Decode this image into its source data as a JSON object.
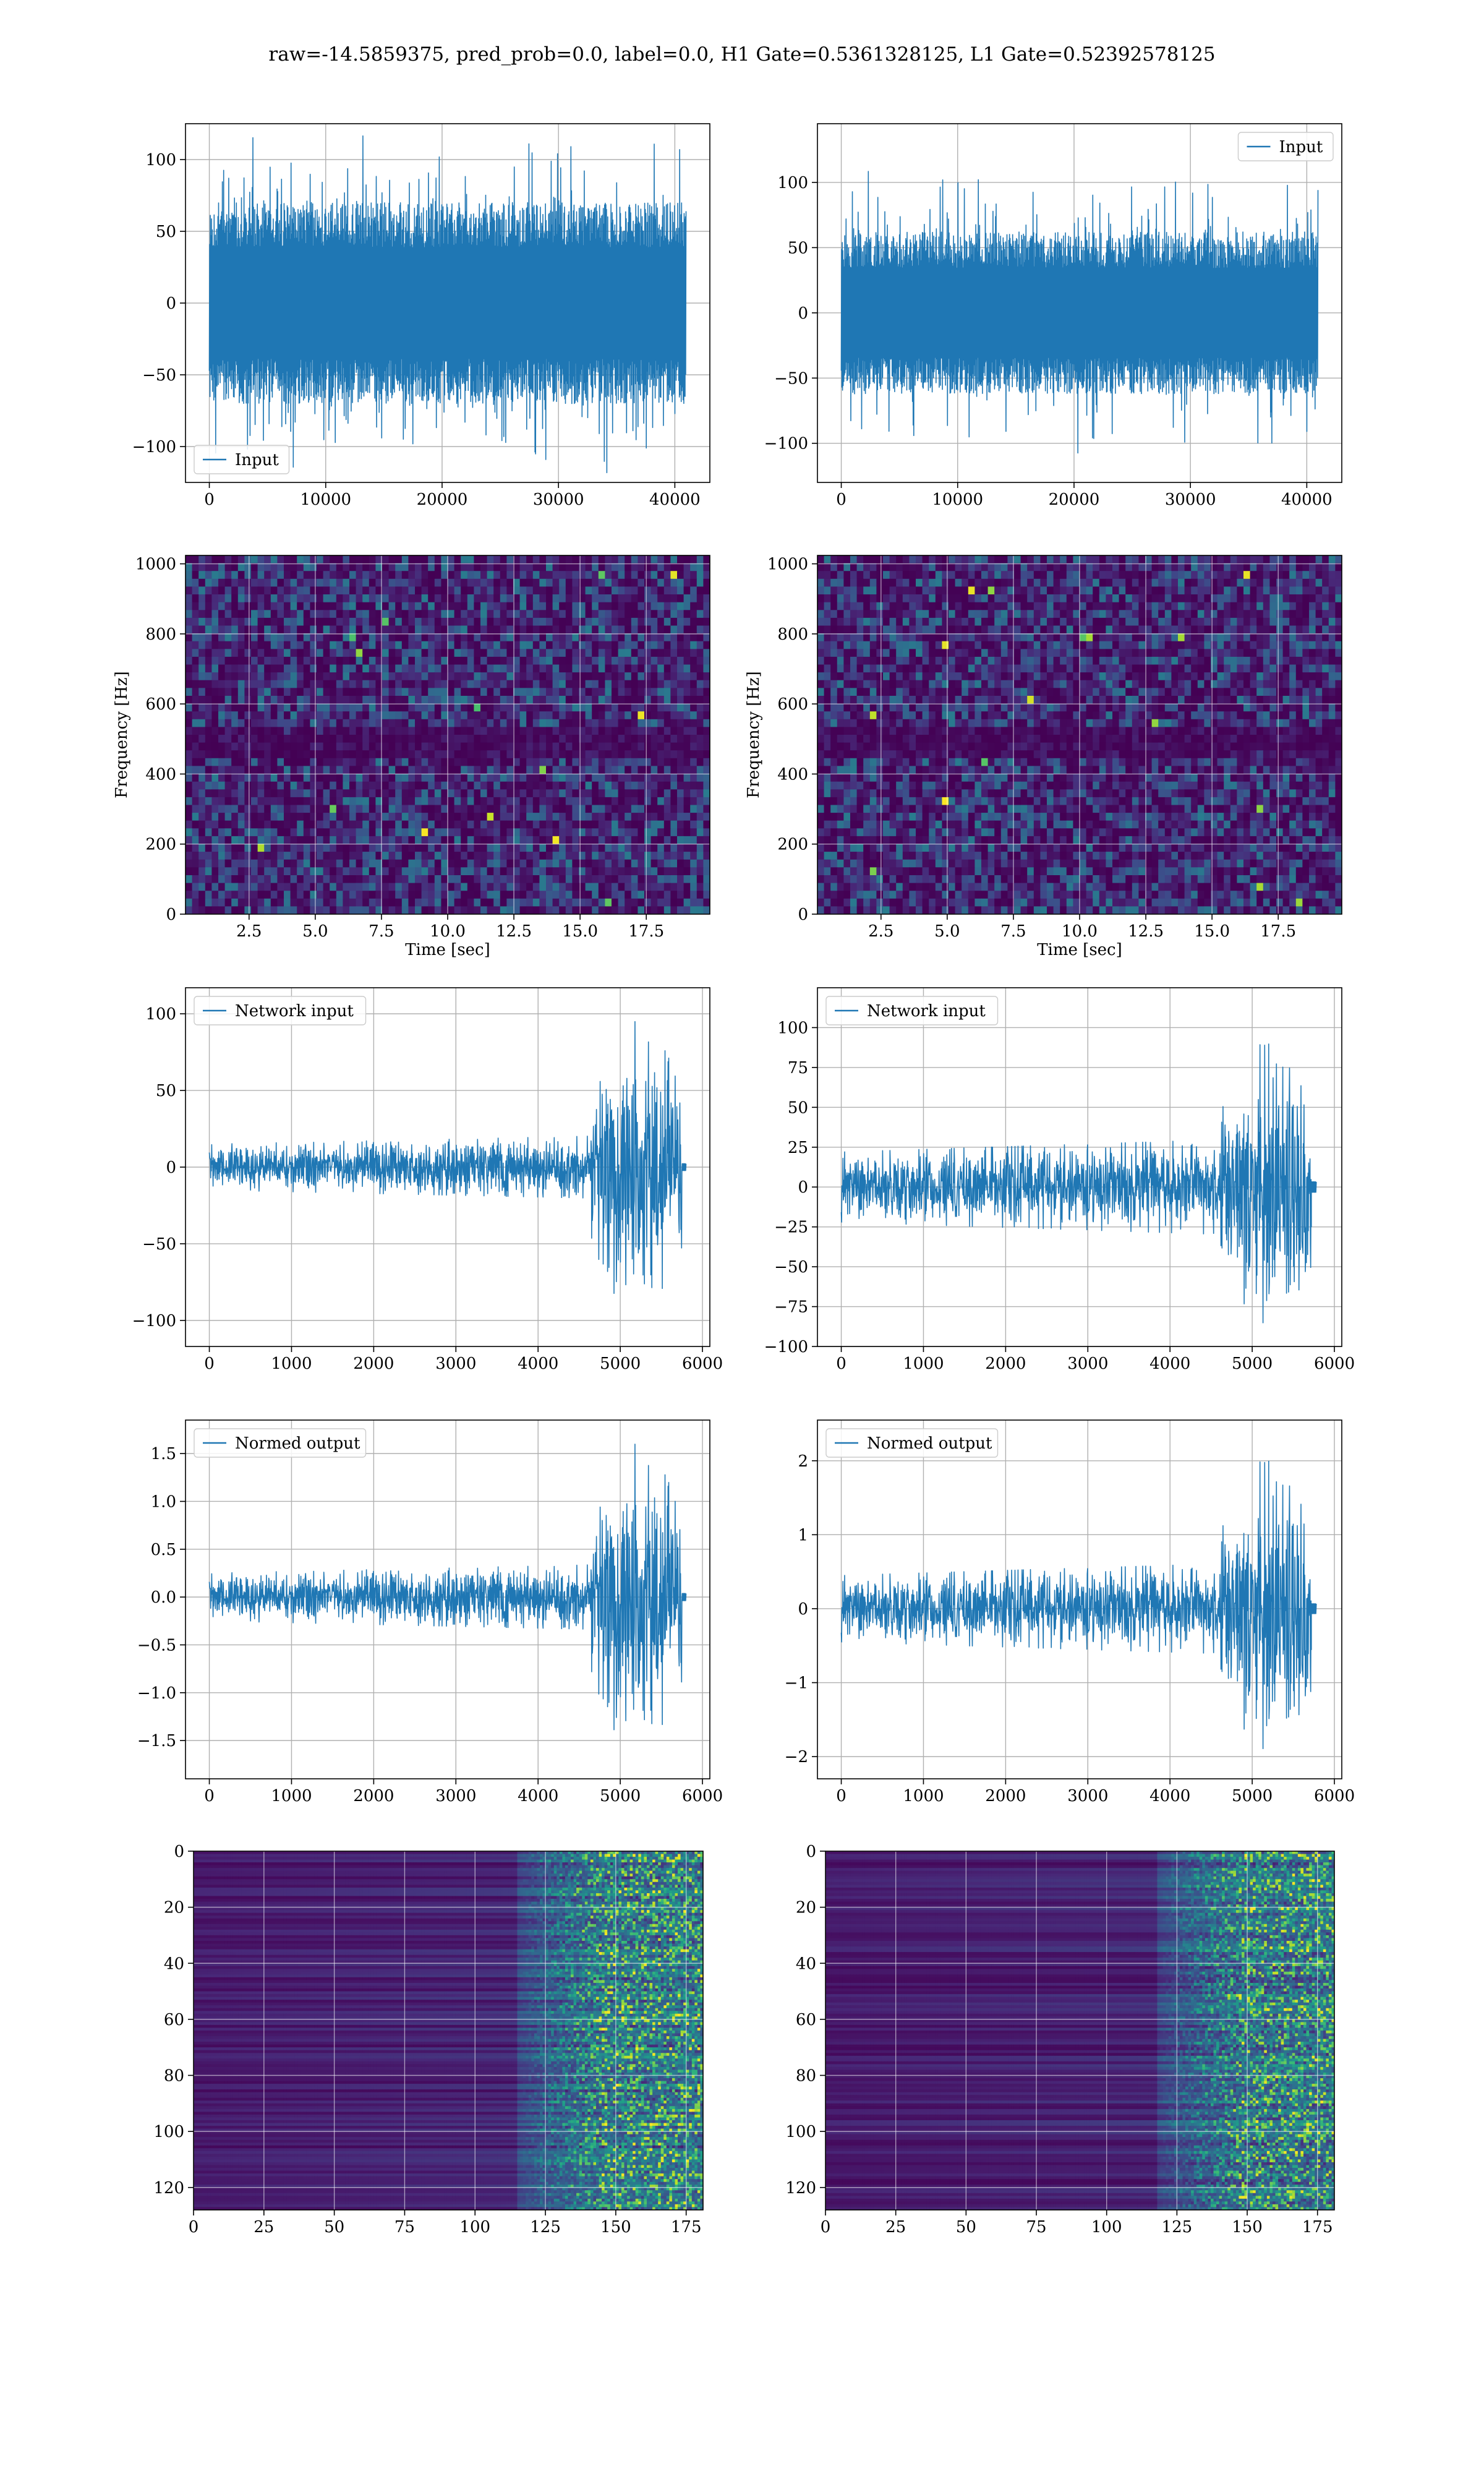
{
  "suptitle": "raw=-14.5859375, pred_prob=0.0, label=0.0, H1 Gate=0.5361328125, L1 Gate=0.52392578125",
  "colors": {
    "line": "#1f77b4",
    "grid": "#b0b0b0",
    "axes": "#000000"
  },
  "chart_data": [
    {
      "id": "h1-input",
      "type": "line",
      "subtype": "dense-noise",
      "series": [
        {
          "name": "Input",
          "x_range": [
            0,
            40960
          ],
          "amp_core": 70,
          "amp_peak": 120,
          "n_points": 1500,
          "seed": 11
        }
      ],
      "xlim": [
        -2048,
        43008
      ],
      "ylim": [
        -125,
        125
      ],
      "xticks": [
        0,
        10000,
        20000,
        30000,
        40000
      ],
      "xtick_labels": [
        "0",
        "10000",
        "20000",
        "30000",
        "40000"
      ],
      "yticks": [
        -100,
        -50,
        0,
        50,
        100
      ],
      "ytick_labels": [
        "−100",
        "−50",
        "0",
        "50",
        "100"
      ],
      "xlabel": "",
      "ylabel": "",
      "legend": "lower left",
      "grid": true
    },
    {
      "id": "l1-input",
      "type": "line",
      "subtype": "dense-noise",
      "series": [
        {
          "name": "Input",
          "x_range": [
            0,
            40960
          ],
          "amp_core": 62,
          "amp_peak": 112,
          "n_points": 1500,
          "seed": 23
        }
      ],
      "xlim": [
        -2048,
        43008
      ],
      "ylim": [
        -130,
        145
      ],
      "xticks": [
        0,
        10000,
        20000,
        30000,
        40000
      ],
      "xtick_labels": [
        "0",
        "10000",
        "20000",
        "30000",
        "40000"
      ],
      "yticks": [
        -100,
        -50,
        0,
        50,
        100
      ],
      "ytick_labels": [
        "−100",
        "−50",
        "0",
        "50",
        "100"
      ],
      "xlabel": "",
      "ylabel": "",
      "legend": "upper right",
      "grid": true
    },
    {
      "id": "h1-spectrogram",
      "type": "heatmap",
      "colormap": "viridis",
      "xlim": [
        0.1,
        19.9
      ],
      "ylim": [
        0,
        1024
      ],
      "cells": [
        80,
        46
      ],
      "seed": 5,
      "dark_band_hz": [
        470,
        520
      ],
      "xticks": [
        2.5,
        5,
        7.5,
        10,
        12.5,
        15,
        17.5
      ],
      "xtick_labels": [
        "2.5",
        "5.0",
        "7.5",
        "10.0",
        "12.5",
        "15.0",
        "17.5"
      ],
      "yticks": [
        0,
        200,
        400,
        600,
        800,
        1000
      ],
      "ytick_labels": [
        "0",
        "200",
        "400",
        "600",
        "800",
        "1000"
      ],
      "xlabel": "Time [sec]",
      "ylabel": "Frequency [Hz]",
      "grid": true
    },
    {
      "id": "l1-spectrogram",
      "type": "heatmap",
      "colormap": "viridis",
      "xlim": [
        0.1,
        19.9
      ],
      "ylim": [
        0,
        1024
      ],
      "cells": [
        80,
        46
      ],
      "seed": 9,
      "dark_band_hz": [
        470,
        520
      ],
      "xticks": [
        2.5,
        5,
        7.5,
        10,
        12.5,
        15,
        17.5
      ],
      "xtick_labels": [
        "2.5",
        "5.0",
        "7.5",
        "10.0",
        "12.5",
        "15.0",
        "17.5"
      ],
      "yticks": [
        0,
        200,
        400,
        600,
        800,
        1000
      ],
      "ytick_labels": [
        "0",
        "200",
        "400",
        "600",
        "800",
        "1000"
      ],
      "xlabel": "Time [sec]",
      "ylabel": "Frequency [Hz]",
      "grid": true
    },
    {
      "id": "h1-network-input",
      "type": "line",
      "subtype": "chirp",
      "series": [
        {
          "name": "Network input",
          "x_range": [
            0,
            5750
          ],
          "tail_x": [
            5750,
            5800
          ],
          "base_amp": 15,
          "burst_start": 4650,
          "burst_amp": 95,
          "n_points": 1400,
          "seed": 31
        }
      ],
      "xlim": [
        -290,
        6090
      ],
      "ylim": [
        -117,
        117
      ],
      "xticks": [
        0,
        1000,
        2000,
        3000,
        4000,
        5000,
        6000
      ],
      "xtick_labels": [
        "0",
        "1000",
        "2000",
        "3000",
        "4000",
        "5000",
        "6000"
      ],
      "yticks": [
        -100,
        -50,
        0,
        50,
        100
      ],
      "ytick_labels": [
        "−100",
        "−50",
        "0",
        "50",
        "100"
      ],
      "xlabel": "",
      "ylabel": "",
      "legend": "upper left",
      "grid": true
    },
    {
      "id": "l1-network-input",
      "type": "line",
      "subtype": "chirp",
      "series": [
        {
          "name": "Network input",
          "x_range": [
            0,
            5720
          ],
          "tail_x": [
            5720,
            5780
          ],
          "base_amp": 22,
          "burst_start": 4600,
          "burst_amp": 90,
          "n_points": 1400,
          "seed": 47
        }
      ],
      "xlim": [
        -290,
        6090
      ],
      "ylim": [
        -100,
        125
      ],
      "xticks": [
        0,
        1000,
        2000,
        3000,
        4000,
        5000,
        6000
      ],
      "xtick_labels": [
        "0",
        "1000",
        "2000",
        "3000",
        "4000",
        "5000",
        "6000"
      ],
      "yticks": [
        -100,
        -75,
        -50,
        -25,
        0,
        25,
        50,
        75,
        100
      ],
      "ytick_labels": [
        "−100",
        "−75",
        "−50",
        "−25",
        "0",
        "25",
        "50",
        "75",
        "100"
      ],
      "xlabel": "",
      "ylabel": "",
      "legend": "upper left",
      "grid": true
    },
    {
      "id": "h1-normed-output",
      "type": "line",
      "subtype": "chirp",
      "series": [
        {
          "name": "Normed output",
          "x_range": [
            0,
            5750
          ],
          "tail_x": [
            5750,
            5800
          ],
          "base_amp": 0.25,
          "burst_start": 4650,
          "burst_amp": 1.6,
          "n_points": 1400,
          "seed": 31
        }
      ],
      "xlim": [
        -290,
        6090
      ],
      "ylim": [
        -1.9,
        1.85
      ],
      "xticks": [
        0,
        1000,
        2000,
        3000,
        4000,
        5000,
        6000
      ],
      "xtick_labels": [
        "0",
        "1000",
        "2000",
        "3000",
        "4000",
        "5000",
        "6000"
      ],
      "yticks": [
        -1.5,
        -1.0,
        -0.5,
        0.0,
        0.5,
        1.0,
        1.5
      ],
      "ytick_labels": [
        "−1.5",
        "−1.0",
        "−0.5",
        "0.0",
        "0.5",
        "1.0",
        "1.5"
      ],
      "xlabel": "",
      "ylabel": "",
      "legend": "upper left",
      "grid": true
    },
    {
      "id": "l1-normed-output",
      "type": "line",
      "subtype": "chirp",
      "series": [
        {
          "name": "Normed output",
          "x_range": [
            0,
            5720
          ],
          "tail_x": [
            5720,
            5780
          ],
          "base_amp": 0.45,
          "burst_start": 4600,
          "burst_amp": 2.0,
          "n_points": 1400,
          "seed": 47
        }
      ],
      "xlim": [
        -290,
        6090
      ],
      "ylim": [
        -2.3,
        2.55
      ],
      "xticks": [
        0,
        1000,
        2000,
        3000,
        4000,
        5000,
        6000
      ],
      "xtick_labels": [
        "0",
        "1000",
        "2000",
        "3000",
        "4000",
        "5000",
        "6000"
      ],
      "yticks": [
        -2,
        -1,
        0,
        1,
        2
      ],
      "ytick_labels": [
        "−2",
        "−1",
        "0",
        "1",
        "2"
      ],
      "xlabel": "",
      "ylabel": "",
      "legend": "upper left",
      "grid": true
    },
    {
      "id": "h1-feature-map",
      "type": "heatmap",
      "colormap": "viridis",
      "origin": "upper",
      "xlim": [
        0,
        181
      ],
      "ylim": [
        128,
        0
      ],
      "cells": [
        181,
        128
      ],
      "seed": 61,
      "activation_start_x": 115,
      "xticks": [
        0,
        25,
        50,
        75,
        100,
        125,
        150,
        175
      ],
      "xtick_labels": [
        "0",
        "25",
        "50",
        "75",
        "100",
        "125",
        "150",
        "175"
      ],
      "yticks": [
        0,
        20,
        40,
        60,
        80,
        100,
        120
      ],
      "ytick_labels": [
        "0",
        "20",
        "40",
        "60",
        "80",
        "100",
        "120"
      ],
      "xlabel": "",
      "ylabel": "",
      "grid": true
    },
    {
      "id": "l1-feature-map",
      "type": "heatmap",
      "colormap": "viridis",
      "origin": "upper",
      "xlim": [
        0,
        181
      ],
      "ylim": [
        128,
        0
      ],
      "cells": [
        181,
        128
      ],
      "seed": 73,
      "activation_start_x": 118,
      "xticks": [
        0,
        25,
        50,
        75,
        100,
        125,
        150,
        175
      ],
      "xtick_labels": [
        "0",
        "25",
        "50",
        "75",
        "100",
        "125",
        "150",
        "175"
      ],
      "yticks": [
        0,
        20,
        40,
        60,
        80,
        100,
        120
      ],
      "ytick_labels": [
        "0",
        "20",
        "40",
        "60",
        "80",
        "100",
        "120"
      ],
      "xlabel": "",
      "ylabel": "",
      "grid": true
    }
  ]
}
